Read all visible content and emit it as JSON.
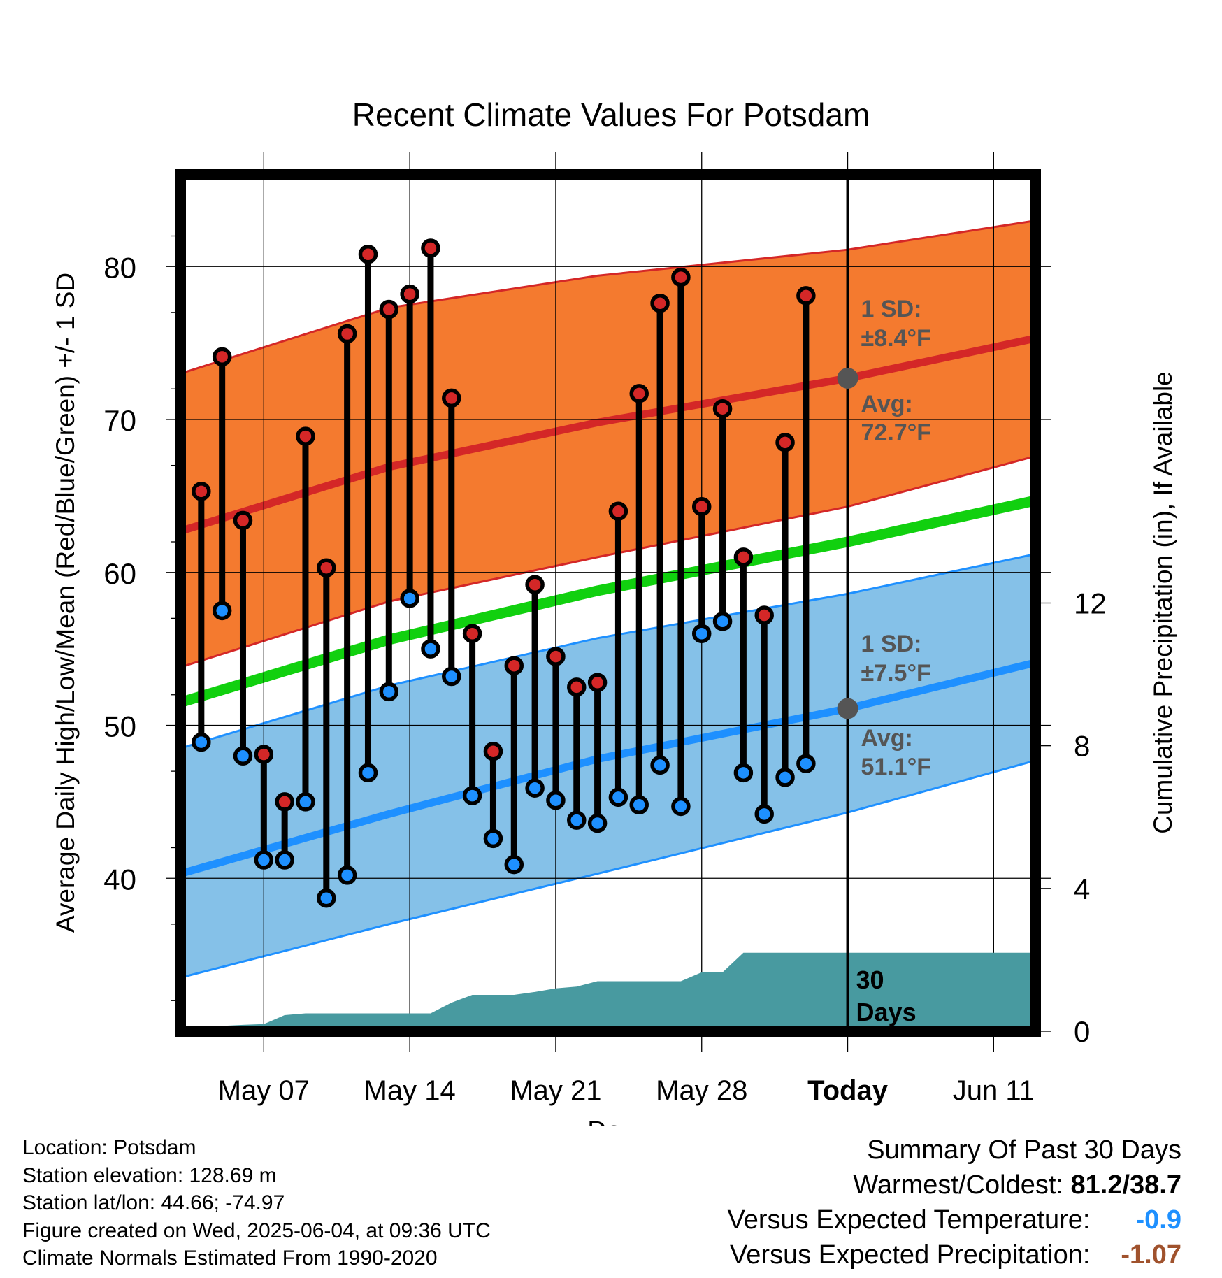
{
  "chart_data": {
    "type": "line",
    "title": "Recent Climate Values For Potsdam",
    "xlabel": "Day",
    "ylabel": "Average Daily High/Low/Mean (Red/Blue/Green) +/- 1 SD",
    "y2label": "Cumulative Precipitation (in), If Available",
    "ylim": [
      30,
      86
    ],
    "y2lim": [
      0,
      24
    ],
    "y_ticks": [
      40,
      50,
      60,
      70,
      80
    ],
    "y2_ticks": [
      0,
      4,
      8,
      12
    ],
    "x_ticks": [
      {
        "date": "2025-05-07",
        "label": "May 07"
      },
      {
        "date": "2025-05-14",
        "label": "May 14"
      },
      {
        "date": "2025-05-21",
        "label": "May 21"
      },
      {
        "date": "2025-05-28",
        "label": "May 28"
      },
      {
        "date": "2025-06-04",
        "label": "Today"
      },
      {
        "date": "2025-06-11",
        "label": "Jun 11"
      }
    ],
    "xlim": [
      "2025-05-03",
      "2025-06-13"
    ],
    "today": "2025-06-04",
    "grid": true,
    "daily": [
      {
        "date": "2025-05-04",
        "high": 65.3,
        "low": 48.9
      },
      {
        "date": "2025-05-05",
        "high": 74.1,
        "low": 57.5
      },
      {
        "date": "2025-05-06",
        "high": 63.4,
        "low": 48.0
      },
      {
        "date": "2025-05-07",
        "high": 48.1,
        "low": 41.2
      },
      {
        "date": "2025-05-08",
        "high": 45.0,
        "low": 41.2
      },
      {
        "date": "2025-05-09",
        "high": 68.9,
        "low": 45.0
      },
      {
        "date": "2025-05-10",
        "high": 60.3,
        "low": 38.7
      },
      {
        "date": "2025-05-11",
        "high": 75.6,
        "low": 40.2
      },
      {
        "date": "2025-05-12",
        "high": 80.8,
        "low": 46.9
      },
      {
        "date": "2025-05-13",
        "high": 77.2,
        "low": 52.2
      },
      {
        "date": "2025-05-14",
        "high": 78.2,
        "low": 58.3
      },
      {
        "date": "2025-05-15",
        "high": 81.2,
        "low": 55.0
      },
      {
        "date": "2025-05-16",
        "high": 71.4,
        "low": 53.2
      },
      {
        "date": "2025-05-17",
        "high": 56.0,
        "low": 45.4
      },
      {
        "date": "2025-05-18",
        "high": 48.3,
        "low": 42.6
      },
      {
        "date": "2025-05-19",
        "high": 53.9,
        "low": 40.9
      },
      {
        "date": "2025-05-20",
        "high": 59.2,
        "low": 45.9
      },
      {
        "date": "2025-05-21",
        "high": 54.5,
        "low": 45.1
      },
      {
        "date": "2025-05-22",
        "high": 52.5,
        "low": 43.8
      },
      {
        "date": "2025-05-23",
        "high": 52.8,
        "low": 43.6
      },
      {
        "date": "2025-05-24",
        "high": 64.0,
        "low": 45.3
      },
      {
        "date": "2025-05-25",
        "high": 71.7,
        "low": 44.8
      },
      {
        "date": "2025-05-26",
        "high": 77.6,
        "low": 47.4
      },
      {
        "date": "2025-05-27",
        "high": 79.3,
        "low": 44.7
      },
      {
        "date": "2025-05-28",
        "high": 64.3,
        "low": 56.0
      },
      {
        "date": "2025-05-29",
        "high": 70.7,
        "low": 56.8
      },
      {
        "date": "2025-05-30",
        "high": 61.0,
        "low": 46.9
      },
      {
        "date": "2025-05-31",
        "high": 57.2,
        "low": 44.2
      },
      {
        "date": "2025-06-01",
        "high": 68.5,
        "low": 46.6
      },
      {
        "date": "2025-06-02",
        "high": 78.1,
        "low": 47.5
      }
    ],
    "normals": {
      "dates": [
        "2025-05-03",
        "2025-05-13",
        "2025-05-23",
        "2025-06-04",
        "2025-06-13"
      ],
      "high_mean": [
        62.7,
        66.9,
        69.8,
        72.7,
        75.3
      ],
      "high_upper": [
        73.0,
        77.3,
        79.4,
        81.1,
        83.0
      ],
      "high_lower": [
        53.8,
        58.1,
        61.0,
        64.3,
        67.6
      ],
      "mean": [
        51.5,
        55.6,
        58.8,
        62.0,
        64.7
      ],
      "low_mean": [
        40.3,
        44.2,
        47.8,
        51.1,
        54.1
      ],
      "low_upper": [
        48.5,
        52.6,
        55.7,
        58.6,
        61.2
      ],
      "low_lower": [
        33.5,
        37.0,
        40.3,
        44.3,
        47.7
      ]
    },
    "precip_cumulative": {
      "dates": [
        "2025-05-04",
        "2025-05-05",
        "2025-05-06",
        "2025-05-07",
        "2025-05-08",
        "2025-05-09",
        "2025-05-10",
        "2025-05-11",
        "2025-05-12",
        "2025-05-13",
        "2025-05-14",
        "2025-05-15",
        "2025-05-16",
        "2025-05-17",
        "2025-05-18",
        "2025-05-19",
        "2025-05-20",
        "2025-05-21",
        "2025-05-22",
        "2025-05-23",
        "2025-05-24",
        "2025-05-25",
        "2025-05-26",
        "2025-05-27",
        "2025-05-28",
        "2025-05-29",
        "2025-05-30",
        "2025-05-31",
        "2025-06-01",
        "2025-06-02",
        "2025-06-03",
        "2025-06-04",
        "2025-06-13"
      ],
      "values": [
        0.0,
        0.15,
        0.18,
        0.2,
        0.45,
        0.5,
        0.5,
        0.5,
        0.5,
        0.5,
        0.5,
        0.5,
        0.8,
        1.02,
        1.02,
        1.02,
        1.1,
        1.2,
        1.25,
        1.4,
        1.4,
        1.4,
        1.4,
        1.4,
        1.65,
        1.65,
        2.2,
        2.2,
        2.2,
        2.2,
        2.2,
        2.2,
        2.2
      ]
    },
    "annotations": {
      "high_sd_label": "1 SD:",
      "high_sd_value": "±8.4°F",
      "high_avg_label": "Avg:",
      "high_avg_value": "72.7°F",
      "low_sd_label": "1 SD:",
      "low_sd_value": "±7.5°F",
      "low_avg_label": "Avg:",
      "low_avg_value": "51.1°F",
      "precip_label_1": "30",
      "precip_label_2": "Days"
    },
    "colors": {
      "high_band": "#f47a2f",
      "high_line": "#d42727",
      "mean_line": "#11d00f",
      "low_band": "#85c1e8",
      "low_line": "#1e90ff",
      "precip": "#489aa0",
      "high_marker": "#d42727",
      "low_marker": "#1e90ff",
      "annotation_text": "#555555"
    }
  },
  "info": {
    "location": "Location: Potsdam",
    "elevation": "Station elevation: 128.69 m",
    "latlon": "Station lat/lon: 44.66; -74.97",
    "created": "Figure created on Wed, 2025-06-04, at 09:36 UTC",
    "normals": "Climate Normals Estimated From 1990-2020"
  },
  "summary": {
    "title": "Summary Of Past 30 Days",
    "warmest_label": "Warmest/Coldest:",
    "warmest_value": "81.2/38.7",
    "temp_label": "Versus Expected Temperature:",
    "temp_value": "-0.9",
    "temp_color": "#1e90ff",
    "precip_label": "Versus Expected Precipitation:",
    "precip_value": "-1.07",
    "precip_color": "#a0522d"
  }
}
